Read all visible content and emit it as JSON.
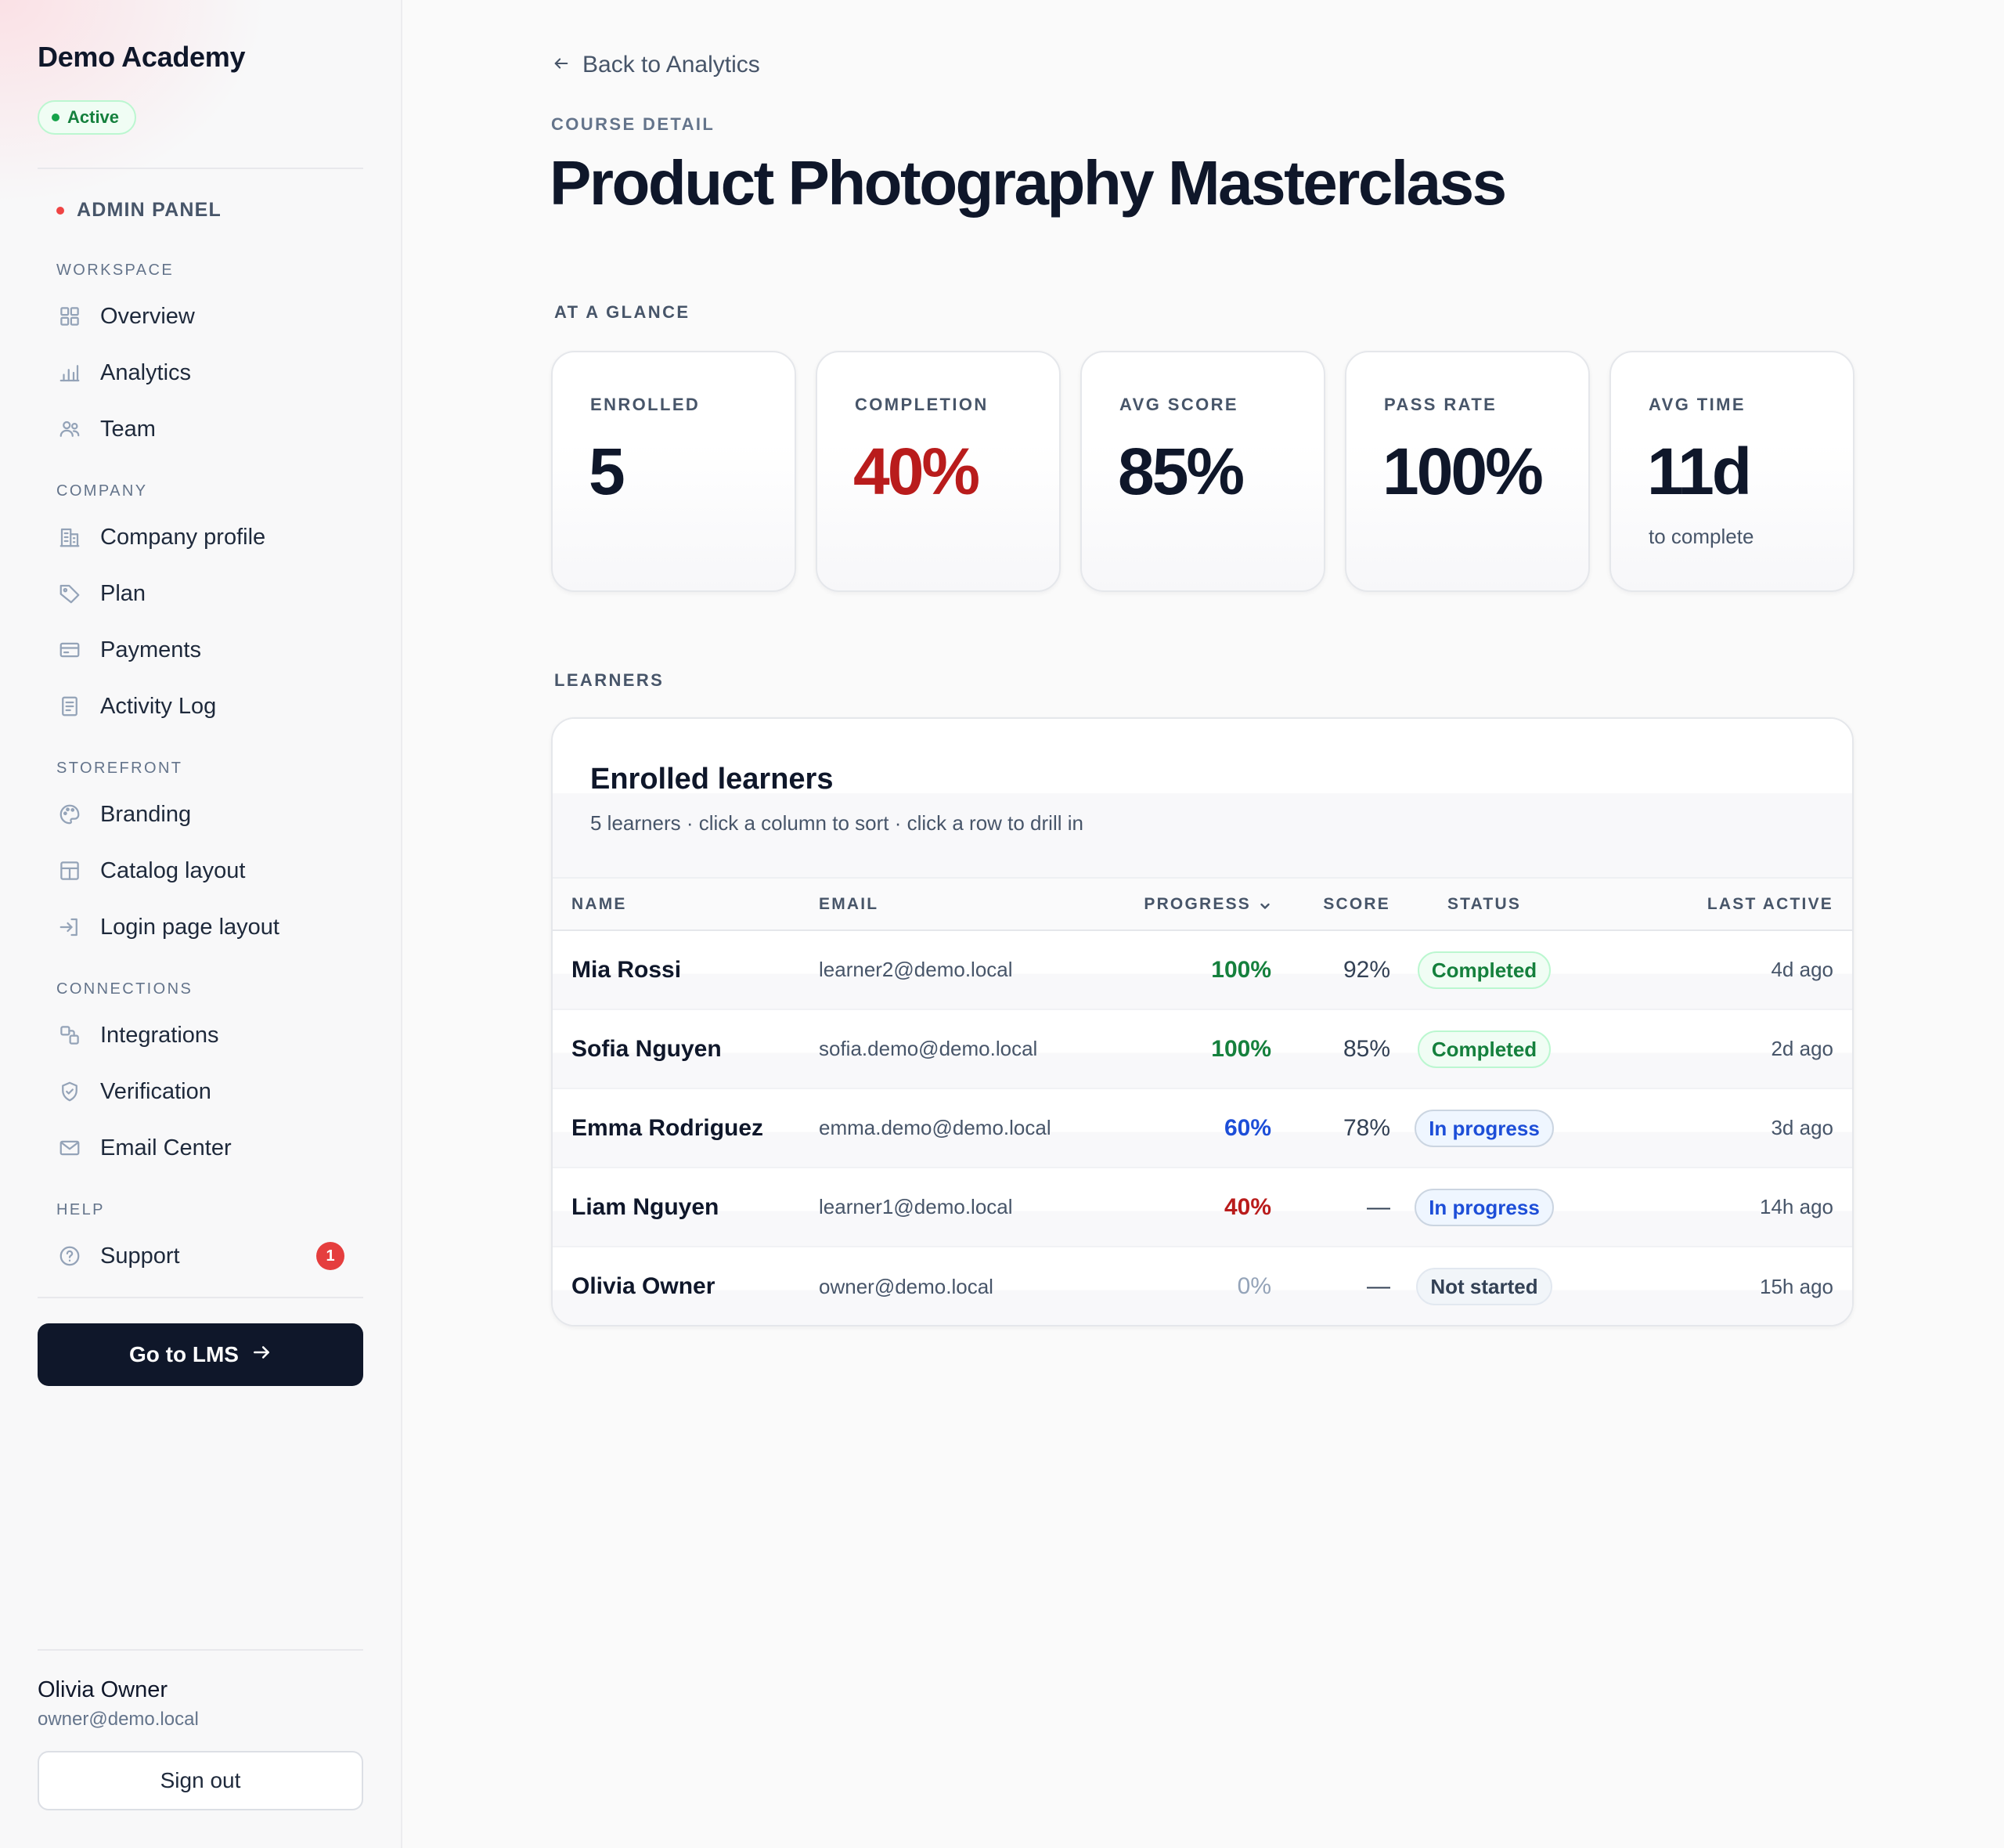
{
  "sidebar": {
    "brand": "Demo Academy",
    "status": "Active",
    "admin_panel": "ADMIN PANEL",
    "sections": {
      "workspace": "WORKSPACE",
      "company": "COMPANY",
      "storefront": "STOREFRONT",
      "connections": "CONNECTIONS",
      "help": "HELP"
    },
    "items": {
      "overview": {
        "label": "Overview",
        "icon": "grid-icon"
      },
      "analytics": {
        "label": "Analytics",
        "icon": "bar-chart-icon"
      },
      "team": {
        "label": "Team",
        "icon": "users-icon"
      },
      "company_profile": {
        "label": "Company profile",
        "icon": "building-icon"
      },
      "plan": {
        "label": "Plan",
        "icon": "tag-icon"
      },
      "payments": {
        "label": "Payments",
        "icon": "credit-card-icon"
      },
      "activity_log": {
        "label": "Activity Log",
        "icon": "document-icon"
      },
      "branding": {
        "label": "Branding",
        "icon": "palette-icon"
      },
      "catalog_layout": {
        "label": "Catalog layout",
        "icon": "layout-icon"
      },
      "login_page_layout": {
        "label": "Login page layout",
        "icon": "login-icon"
      },
      "integrations": {
        "label": "Integrations",
        "icon": "integrations-icon"
      },
      "verification": {
        "label": "Verification",
        "icon": "shield-check-icon"
      },
      "email_center": {
        "label": "Email Center",
        "icon": "mail-icon"
      },
      "support": {
        "label": "Support",
        "icon": "help-circle-icon",
        "badge": "1"
      }
    },
    "go_lms": "Go to LMS",
    "user": {
      "name": "Olivia Owner",
      "email": "owner@demo.local"
    },
    "sign_out": "Sign out"
  },
  "main": {
    "back_label": "Back to Analytics",
    "eyebrow": "COURSE DETAIL",
    "title": "Product Photography Masterclass",
    "glance_label": "AT A GLANCE",
    "stats": {
      "enrolled": {
        "label": "ENROLLED",
        "value": "5"
      },
      "completion": {
        "label": "COMPLETION",
        "value": "40%"
      },
      "avg_score": {
        "label": "AVG SCORE",
        "value": "85%"
      },
      "pass_rate": {
        "label": "PASS RATE",
        "value": "100%"
      },
      "avg_time": {
        "label": "AVG TIME",
        "value": "11d",
        "sub": "to complete"
      }
    },
    "learners_label": "LEARNERS",
    "table": {
      "title": "Enrolled learners",
      "subtitle": "5 learners · click a column to sort · click a row to drill in",
      "columns": {
        "name": "NAME",
        "email": "EMAIL",
        "progress": "PROGRESS",
        "score": "SCORE",
        "status": "STATUS",
        "last_active": "LAST ACTIVE"
      },
      "sorted_by": "progress",
      "rows": [
        {
          "name": "Mia Rossi",
          "email": "learner2@demo.local",
          "progress": "100%",
          "score": "92%",
          "status": "Completed",
          "last_active": "4d ago"
        },
        {
          "name": "Sofia Nguyen",
          "email": "sofia.demo@demo.local",
          "progress": "100%",
          "score": "85%",
          "status": "Completed",
          "last_active": "2d ago"
        },
        {
          "name": "Emma Rodriguez",
          "email": "emma.demo@demo.local",
          "progress": "60%",
          "score": "78%",
          "status": "In progress",
          "last_active": "3d ago"
        },
        {
          "name": "Liam Nguyen",
          "email": "learner1@demo.local",
          "progress": "40%",
          "score": "—",
          "status": "In progress",
          "last_active": "14h ago"
        },
        {
          "name": "Olivia Owner",
          "email": "owner@demo.local",
          "progress": "0%",
          "score": "—",
          "status": "Not started",
          "last_active": "15h ago"
        }
      ]
    }
  },
  "colors": {
    "accent_dark": "#0f172a",
    "success": "#15803d",
    "info": "#1d4ed8",
    "danger": "#b91c1c",
    "muted": "#94a3b8"
  }
}
